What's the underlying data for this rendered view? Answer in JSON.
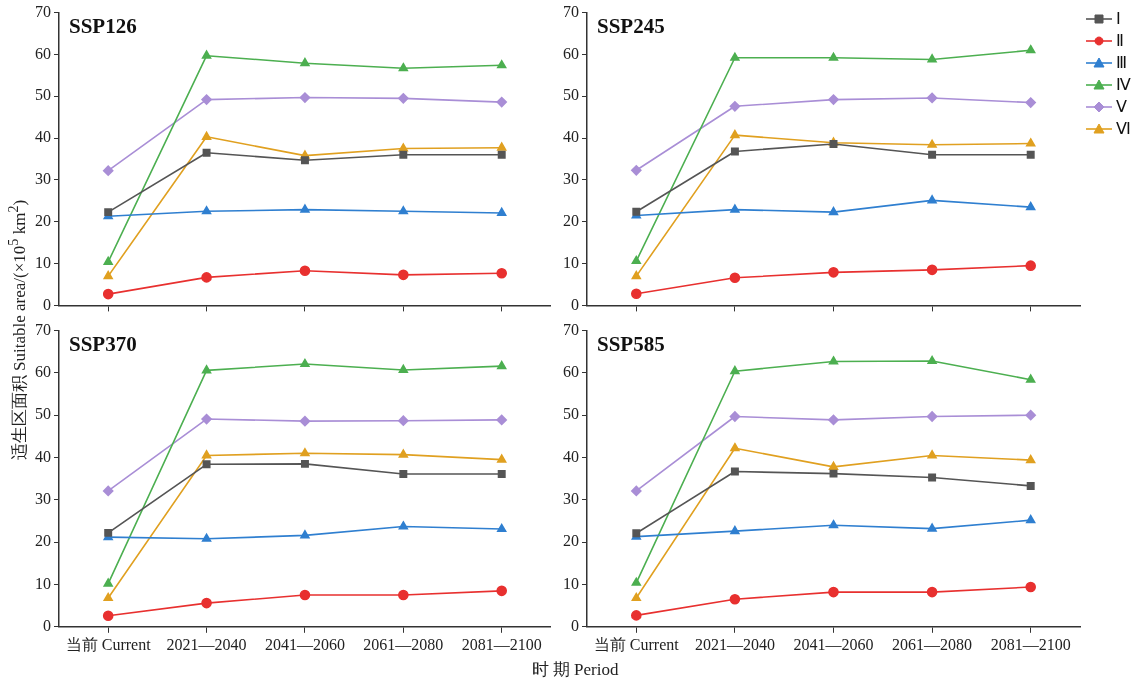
{
  "chart_data": [
    {
      "type": "line",
      "title": "SSP126",
      "ylabel": "适生区面积 Suitable area/(×10$^{5}$ km$^{2}$)",
      "categories": [
        null,
        null,
        null,
        null,
        null
      ],
      "ylim": [
        0,
        70
      ],
      "yticks": [
        0,
        10,
        20,
        30,
        40,
        50,
        60,
        70
      ],
      "grid": false,
      "legend": false,
      "tick_labels": "y",
      "line_style": "solid",
      "series": [
        {
          "color": "#555555",
          "marker": "square",
          "values": [
            22.3,
            36.5,
            34.7,
            36,
            36
          ]
        },
        {
          "color": "#e8302f",
          "marker": "circle",
          "values": [
            2.7,
            6.7,
            8.3,
            7.3,
            7.7
          ]
        },
        {
          "color": "#2f7fd0",
          "marker": "triangle",
          "values": [
            21.3,
            22.5,
            22.9,
            22.5,
            22.1
          ]
        },
        {
          "color": "#4caf50",
          "marker": "triangle",
          "values": [
            10.4,
            59.7,
            57.9,
            56.7,
            57.4
          ]
        },
        {
          "color": "#a98ed6",
          "marker": "diamond",
          "values": [
            32.2,
            49.2,
            49.7,
            49.5,
            48.6
          ]
        },
        {
          "color": "#e0a020",
          "marker": "triangle",
          "values": [
            7,
            40.3,
            35.8,
            37.5,
            37.7
          ]
        }
      ]
    },
    {
      "type": "line",
      "title": "SSP245",
      "categories": [
        null,
        null,
        null,
        null,
        null
      ],
      "ylim": [
        0,
        70
      ],
      "yticks": [
        0,
        10,
        20,
        30,
        40,
        50,
        60,
        70
      ],
      "grid": false,
      "legend": "top right",
      "tick_labels": "y",
      "line_style": "solid",
      "series": [
        {
          "name": "Ⅰ",
          "color": "#555555",
          "marker": "square",
          "values": [
            22.4,
            36.8,
            38.6,
            36,
            36
          ]
        },
        {
          "name": "Ⅱ",
          "color": "#e8302f",
          "marker": "circle",
          "values": [
            2.8,
            6.6,
            7.9,
            8.5,
            9.5
          ]
        },
        {
          "name": "Ⅲ",
          "color": "#2f7fd0",
          "marker": "triangle",
          "values": [
            21.5,
            22.9,
            22.3,
            25.1,
            23.5
          ]
        },
        {
          "name": "Ⅳ",
          "color": "#4caf50",
          "marker": "triangle",
          "values": [
            10.6,
            59.2,
            59.2,
            58.8,
            61
          ]
        },
        {
          "name": "Ⅴ",
          "color": "#a98ed6",
          "marker": "diamond",
          "values": [
            32.3,
            47.6,
            49.2,
            49.6,
            48.5
          ]
        },
        {
          "name": "Ⅵ",
          "color": "#e0a020",
          "marker": "triangle",
          "values": [
            7,
            40.7,
            38.9,
            38.4,
            38.7
          ]
        }
      ]
    },
    {
      "type": "line",
      "title": "SSP370",
      "xlabel": "时 期 Period",
      "categories": [
        "当前 Current",
        "2021—2040",
        "2041—2060",
        "2061—2080",
        "2081—2100"
      ],
      "ylim": [
        0,
        70
      ],
      "yticks": [
        0,
        10,
        20,
        30,
        40,
        50,
        60,
        70
      ],
      "grid": false,
      "legend": false,
      "line_style": "solid",
      "series": [
        {
          "color": "#555555",
          "marker": "square",
          "values": [
            22.2,
            38.4,
            38.5,
            36.1,
            36.1
          ]
        },
        {
          "color": "#e8302f",
          "marker": "circle",
          "values": [
            2.6,
            5.6,
            7.5,
            7.5,
            8.5
          ]
        },
        {
          "color": "#2f7fd0",
          "marker": "triangle",
          "values": [
            21.2,
            20.8,
            21.6,
            23.7,
            23.1
          ]
        },
        {
          "color": "#4caf50",
          "marker": "triangle",
          "values": [
            10.2,
            60.6,
            62.1,
            60.7,
            61.6
          ]
        },
        {
          "color": "#a98ed6",
          "marker": "diamond",
          "values": [
            32.1,
            49.1,
            48.6,
            48.7,
            48.9
          ]
        },
        {
          "color": "#e0a020",
          "marker": "triangle",
          "values": [
            6.8,
            40.5,
            41,
            40.7,
            39.5
          ]
        }
      ]
    },
    {
      "type": "line",
      "title": "SSP585",
      "categories": [
        "当前 Current",
        "2021—2040",
        "2041—2060",
        "2061—2080",
        "2081—2100"
      ],
      "ylim": [
        0,
        70
      ],
      "yticks": [
        0,
        10,
        20,
        30,
        40,
        50,
        60,
        70
      ],
      "grid": false,
      "legend": false,
      "line_style": "solid",
      "series": [
        {
          "color": "#555555",
          "marker": "square",
          "values": [
            22.1,
            36.7,
            36.2,
            35.3,
            33.3
          ]
        },
        {
          "color": "#e8302f",
          "marker": "circle",
          "values": [
            2.7,
            6.5,
            8.2,
            8.2,
            9.4
          ]
        },
        {
          "color": "#2f7fd0",
          "marker": "triangle",
          "values": [
            21.3,
            22.6,
            24,
            23.2,
            25.2
          ]
        },
        {
          "color": "#4caf50",
          "marker": "triangle",
          "values": [
            10.4,
            60.4,
            62.7,
            62.8,
            58.4
          ]
        },
        {
          "color": "#a98ed6",
          "marker": "diamond",
          "values": [
            32.1,
            49.7,
            48.9,
            49.7,
            50
          ]
        },
        {
          "color": "#e0a020",
          "marker": "triangle",
          "values": [
            6.8,
            42.2,
            37.8,
            40.5,
            39.4
          ]
        }
      ]
    }
  ]
}
